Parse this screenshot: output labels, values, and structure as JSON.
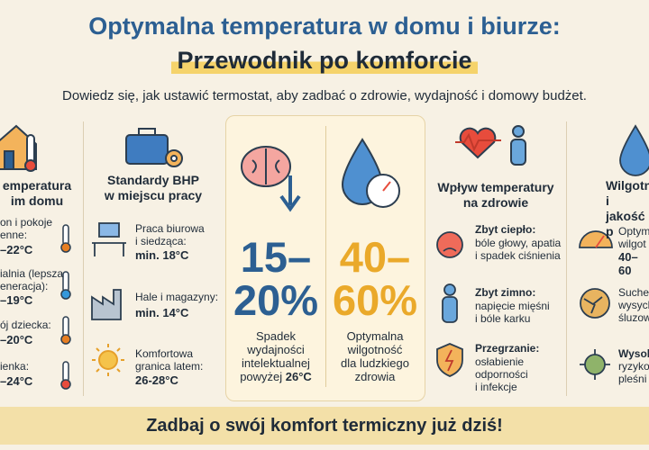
{
  "header": {
    "title_line1": "Optymalna temperatura w domu i biurze:",
    "title_line2": "Przewodnik po komforcie",
    "subtitle": "Dowiedz się, jak ustawić termostat, aby zadbać o zdrowie, wydajność i domowy budżet."
  },
  "home": {
    "title": "emperatura\nim domu",
    "items": [
      {
        "text": "on i pokoje\nenne:",
        "value": "–22°C"
      },
      {
        "text": "ialnia (lepsza\neneracja):",
        "value": "–19°C"
      },
      {
        "text": "ój dziecka:",
        "value": "–20°C"
      },
      {
        "text": "ienka:",
        "value": "–24°C"
      }
    ]
  },
  "work": {
    "title": "Standardy BHP\nw miejscu pracy",
    "items": [
      {
        "text": "Praca biurowa\ni siedząca:",
        "value": "min. 18°C"
      },
      {
        "text": "Hale i magazyny:",
        "value": "min. 14°C"
      },
      {
        "text": "Komfortowa\ngranica latem:",
        "value": "26-28°C"
      }
    ]
  },
  "stats": [
    {
      "value": "15–\n20%",
      "text": "Spadek\nwydajności\nintelektualnej\npowyżej ",
      "bold": "26°C"
    },
    {
      "value": "40–\n60%",
      "text": "Optymalna\nwilgotność\ndla ludzkiego\nzdrowia",
      "bold": ""
    }
  ],
  "health": {
    "title": "Wpływ temperatury\nna zdrowie",
    "items": [
      {
        "label": "Zbyt ciepło:",
        "text": "bóle głowy, apatia\ni spadek ciśnienia"
      },
      {
        "label": "Zbyt zimno:",
        "text": "napięcie mięśni\ni bóle karku"
      },
      {
        "label": "Przegrzanie:",
        "text": "osłabienie\nodporności\ni infekcje"
      }
    ]
  },
  "humidity": {
    "title": "Wilgotn\ni jakość p",
    "items": [
      {
        "label": "Optym\nwilgot",
        "value": "40–60"
      },
      {
        "label": "Suche\nwysych\nśluzow",
        "value": ""
      },
      {
        "label": "Wysok",
        "value": "ryzyko\npleśni"
      }
    ]
  },
  "footer": "Zadbaj o swój komfort termiczny już dziś!"
}
